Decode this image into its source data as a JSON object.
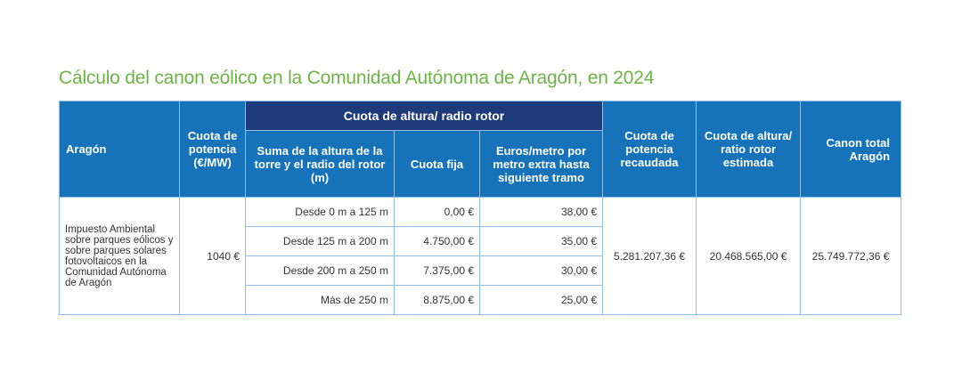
{
  "title": "Cálculo del canon eólico en la Comunidad Autónoma de Aragón, en 2024",
  "header": {
    "aragon": "Aragón",
    "cuota_potencia": "Cuota de potencia (€/MW)",
    "cuota_altura_group": "Cuota de altura/ radio rotor",
    "suma_altura": "Suma de la altura de la torre y el radio del rotor (m)",
    "cuota_fija": "Cuota fija",
    "euros_metro": "Euros/metro por metro extra hasta siguiente tramo",
    "cuota_potencia_recaudada": "Cuota de potencia recaudada",
    "cuota_altura_estimada": "Cuota de altura/ ratio rotor estimada",
    "canon_total": "Canon total Aragón"
  },
  "body": {
    "description": "Impuesto Ambiental sobre parques eólicos y sobre parques solares fotovoltaicos en la Comunidad Autónoma de Aragón",
    "cuota_potencia": "1040 €",
    "tramos": [
      {
        "rango": "Desde 0 m a 125 m",
        "cuota_fija": "0,00 €",
        "euros_metro": "38,00 €"
      },
      {
        "rango": "Desde 125 m a 200 m",
        "cuota_fija": "4.750,00 €",
        "euros_metro": "35,00 €"
      },
      {
        "rango": "Desde 200 m a 250 m",
        "cuota_fija": "7.375,00 €",
        "euros_metro": "30,00 €"
      },
      {
        "rango": "Más de 250 m",
        "cuota_fija": "8.875,00 €",
        "euros_metro": "25,00 €"
      }
    ],
    "cuota_potencia_recaudada": "5.281.207,36 €",
    "cuota_altura_estimada": "20.468.565,00 €",
    "canon_total": "25.749.772,36 €"
  }
}
